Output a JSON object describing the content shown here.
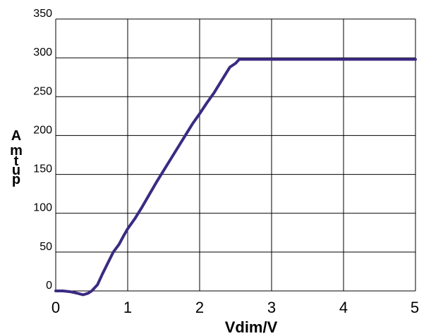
{
  "chart_data": {
    "type": "line",
    "title": "",
    "xlabel": "Vdim/V",
    "ylabel_letters": [
      "A",
      "m",
      "t",
      "u",
      "p"
    ],
    "xlim": [
      0,
      5
    ],
    "ylim": [
      0,
      350
    ],
    "xticks": [
      "0",
      "1",
      "2",
      "3",
      "4",
      "5"
    ],
    "yticks": [
      "0",
      "50",
      "100",
      "150",
      "200",
      "250",
      "300",
      "350"
    ],
    "grid": true,
    "line_color": "#3b2a82",
    "series": [
      {
        "x": [
          0,
          0.1,
          0.2,
          0.3,
          0.38,
          0.45,
          0.5,
          0.58,
          0.65,
          0.72,
          0.8,
          0.88,
          0.95,
          1.0,
          1.1,
          1.2,
          1.3,
          1.4,
          1.5,
          1.6,
          1.7,
          1.8,
          1.9,
          2.0,
          2.1,
          2.2,
          2.3,
          2.42,
          2.5,
          2.55,
          2.6,
          3.0,
          3.5,
          4.0,
          4.5,
          5.0
        ],
        "y": [
          0,
          0,
          -1,
          -3,
          -5,
          -3,
          0,
          8,
          22,
          35,
          50,
          60,
          72,
          80,
          93,
          108,
          124,
          140,
          155,
          170,
          185,
          200,
          215,
          228,
          242,
          255,
          270,
          288,
          293,
          298,
          298,
          298,
          298,
          298,
          298,
          298
        ]
      }
    ]
  }
}
